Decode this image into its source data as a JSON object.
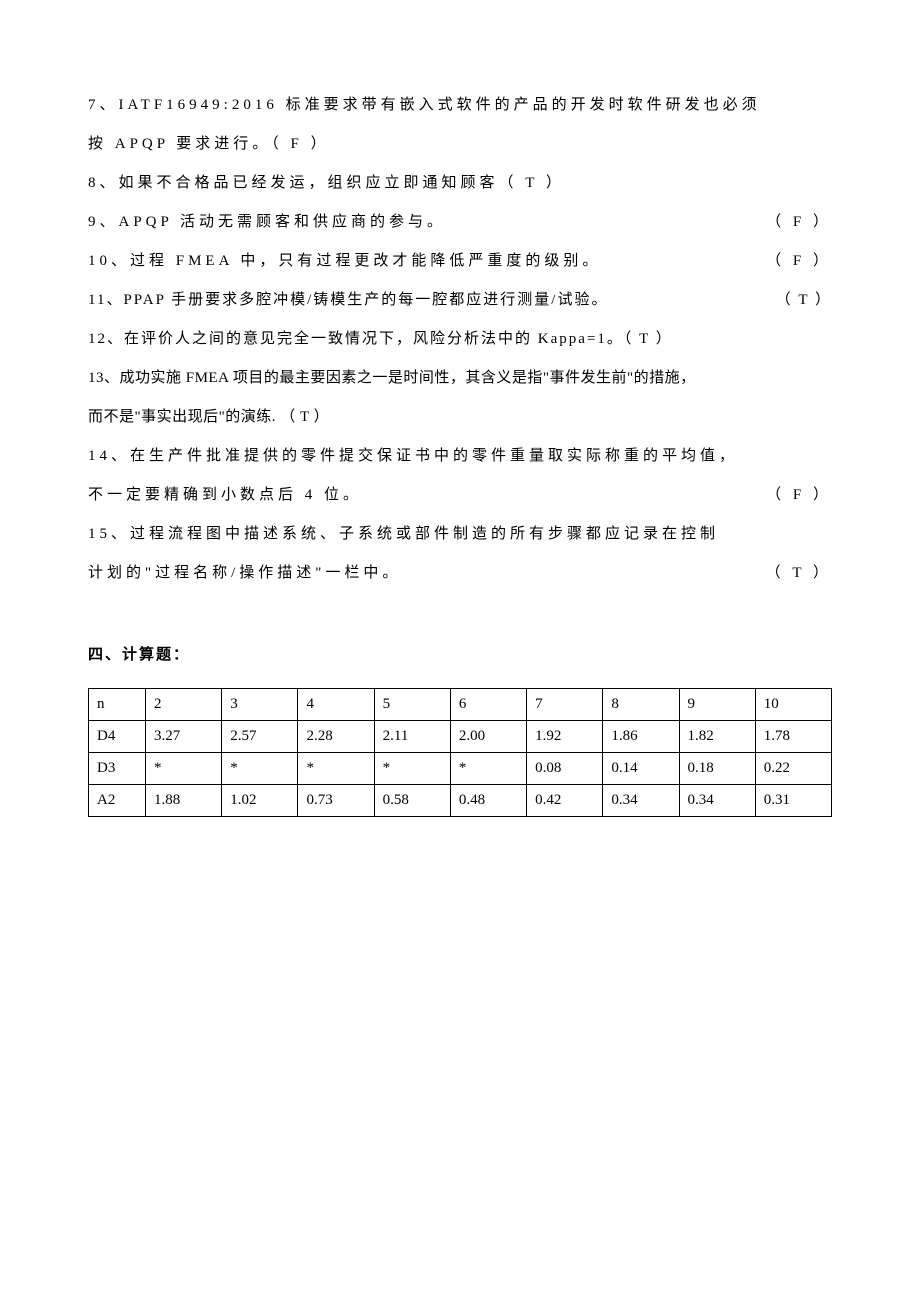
{
  "questions": [
    {
      "line1": "7、IATF16949:2016 标准要求带有嵌入式软件的产品的开发时软件研发也必须",
      "line2": "按 APQP 要求进行。（ F ）"
    },
    {
      "line1": "8、如果不合格品已经发运，组织应立即通知顾客（ T  ）"
    },
    {
      "text": "9、APQP 活动无需顾客和供应商的参与。",
      "answer": "（ F ）"
    },
    {
      "text": "10、过程 FMEA 中，只有过程更改才能降低严重度的级别。",
      "answer": "（ F ）"
    },
    {
      "text": "11、PPAP 手册要求多腔冲模/铸模生产的每一腔都应进行测量/试验。",
      "answer": "（ T ）"
    },
    {
      "text": "12、在评价人之间的意见完全一致情况下，风险分析法中的 Kappa=1。（ T ）"
    },
    {
      "line1": "13、成功实施 FMEA 项目的最主要因素之一是时间性，其含义是指\"事件发生前\"的措施，",
      "line2": "而不是\"事实出现后\"的演练.     （ T ）"
    },
    {
      "line1": "14、在生产件批准提供的零件提交保证书中的零件重量取实际称重的平均值，",
      "line2_text": "不一定要精确到小数点后 4 位。",
      "line2_answer": "（ F ）"
    },
    {
      "line1": "15、过程流程图中描述系统、子系统或部件制造的所有步骤都应记录在控制",
      "line2_text": "计划的\"过程名称/操作描述\"一栏中。",
      "line2_answer": "（ T ）"
    }
  ],
  "section_title": "四、计算题：",
  "table": {
    "rows": [
      {
        "h": "n",
        "cells": [
          "2",
          "3",
          "4",
          "5",
          "6",
          "7",
          "8",
          "9",
          "10"
        ]
      },
      {
        "h": "D4",
        "cells": [
          "3.27",
          "2.57",
          "2.28",
          "2.11",
          "2.00",
          "1.92",
          "1.86",
          "1.82",
          "1.78"
        ]
      },
      {
        "h": "D3",
        "cells": [
          "*",
          "*",
          "*",
          "*",
          "*",
          "0.08",
          "0.14",
          "0.18",
          "0.22"
        ]
      },
      {
        "h": "A2",
        "cells": [
          "1.88",
          "1.02",
          "0.73",
          "0.58",
          "0.48",
          "0.42",
          "0.34",
          "0.34",
          "0.31"
        ]
      }
    ]
  }
}
